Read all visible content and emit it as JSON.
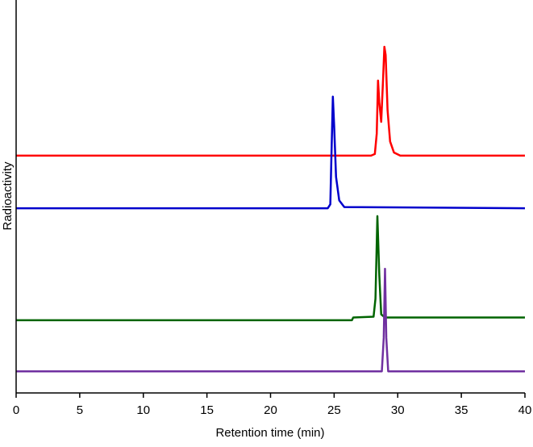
{
  "chart_data": {
    "type": "line",
    "xlabel": "Retention time (min)",
    "ylabel": "Radioactivity",
    "xlim": [
      0,
      40
    ],
    "xticks": [
      0,
      5,
      10,
      15,
      20,
      25,
      30,
      35,
      40
    ],
    "ylim": [
      0,
      100
    ],
    "series": [
      {
        "color": "#ff0000",
        "x": [
          0,
          27.9,
          28.2,
          28.35,
          28.45,
          28.55,
          28.7,
          28.85,
          28.95,
          29.05,
          29.2,
          29.4,
          29.7,
          30.2,
          40
        ],
        "values": [
          60.4,
          60.4,
          60.8,
          66,
          79.5,
          74,
          69,
          80,
          88.1,
          86,
          72,
          64,
          61.2,
          60.4,
          60.4
        ]
      },
      {
        "color": "#0000cc",
        "x": [
          0,
          24.5,
          24.7,
          24.8,
          24.9,
          25.0,
          25.15,
          25.4,
          25.8,
          40
        ],
        "values": [
          47,
          47,
          48,
          62,
          75.4,
          68,
          55,
          49,
          47.3,
          47
        ]
      },
      {
        "color": "#006400",
        "x": [
          0,
          26.4,
          26.5,
          28.1,
          28.25,
          28.4,
          28.55,
          28.7,
          29,
          40
        ],
        "values": [
          18.5,
          18.5,
          19.2,
          19.4,
          24,
          45,
          30,
          20,
          19.2,
          19.2
        ]
      },
      {
        "color": "#7030a0",
        "x": [
          0,
          28.75,
          28.9,
          29.0,
          29.1,
          29.25,
          40
        ],
        "values": [
          5.5,
          5.5,
          14,
          31.6,
          14,
          5.5,
          5.5
        ]
      }
    ]
  }
}
